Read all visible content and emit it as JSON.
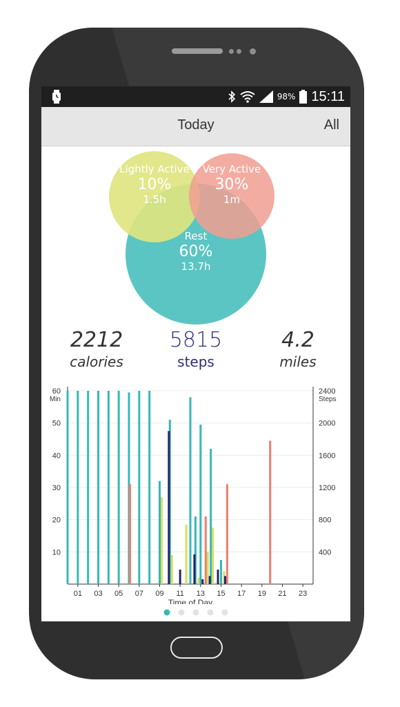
{
  "status_bar": {
    "battery_percent": "98%",
    "time": "15:11",
    "icons": [
      "watch-icon",
      "bluetooth-icon",
      "wifi-icon",
      "signal-icon",
      "battery-icon"
    ]
  },
  "app_bar": {
    "title": "Today",
    "all_label": "All"
  },
  "activity": {
    "lightly": {
      "name": "Lightly Active",
      "percent": "10%",
      "time": "1.5h",
      "color": "#dfe47e"
    },
    "very": {
      "name": "Very Active",
      "percent": "30%",
      "time": "1m",
      "color": "#f19d92"
    },
    "rest": {
      "name": "Rest",
      "percent": "60%",
      "time": "13.7h",
      "color": "#5bc5c3"
    }
  },
  "summary": {
    "calories": {
      "value": "2212",
      "label": "calories"
    },
    "steps": {
      "value": "5815",
      "label": "steps"
    },
    "miles": {
      "value": "4.2",
      "label": "miles"
    }
  },
  "chart_data": {
    "type": "bar",
    "xlabel": "Time of Day",
    "y_left_unit": "Min",
    "y_right_unit": "Steps",
    "y_left_ticks": [
      10,
      20,
      30,
      40,
      50,
      60
    ],
    "y_left_range": [
      0,
      60
    ],
    "y_right_ticks": [
      400,
      800,
      1200,
      1600,
      2000,
      2400
    ],
    "y_right_range": [
      0,
      2400
    ],
    "x_ticks": [
      "01",
      "03",
      "05",
      "07",
      "09",
      "11",
      "13",
      "15",
      "17",
      "19",
      "21",
      "23"
    ],
    "x_range": [
      0,
      24
    ],
    "grid": true,
    "colors": {
      "rest": "#35b9b6",
      "lightly": "#d3e05e",
      "very": "#ef7d6d",
      "steps": "#24246a"
    },
    "series": [
      {
        "key": "rest",
        "points": [
          [
            0,
            60
          ],
          [
            1,
            60
          ],
          [
            2,
            60
          ],
          [
            3,
            60
          ],
          [
            4,
            60
          ],
          [
            5,
            60
          ],
          [
            6,
            59.5
          ],
          [
            7,
            60
          ],
          [
            8,
            60
          ],
          [
            9,
            32
          ],
          [
            10,
            51
          ],
          [
            12,
            58
          ],
          [
            12.5,
            21
          ],
          [
            13,
            49.5
          ],
          [
            14,
            42
          ],
          [
            15,
            7.5
          ]
        ]
      },
      {
        "key": "lightly",
        "points": [
          [
            9.2,
            27
          ],
          [
            10.2,
            9
          ],
          [
            11.6,
            18.5
          ],
          [
            12.8,
            2
          ],
          [
            13.7,
            10
          ],
          [
            14.2,
            17.5
          ],
          [
            15.3,
            4
          ]
        ]
      },
      {
        "key": "very",
        "points": [
          [
            6.1,
            31
          ],
          [
            13.5,
            21
          ],
          [
            15.6,
            31
          ],
          [
            19.8,
            44.5
          ]
        ]
      },
      {
        "key": "steps",
        "points": [
          [
            9.9,
            1900
          ],
          [
            11,
            180
          ],
          [
            12.4,
            370
          ],
          [
            13.2,
            60
          ],
          [
            13.9,
            100
          ],
          [
            14.7,
            180
          ],
          [
            15.4,
            100
          ]
        ]
      }
    ]
  },
  "pager": {
    "count": 5,
    "active": 0,
    "active_color": "#35b9b6",
    "inactive_color": "#e3e3e3"
  }
}
